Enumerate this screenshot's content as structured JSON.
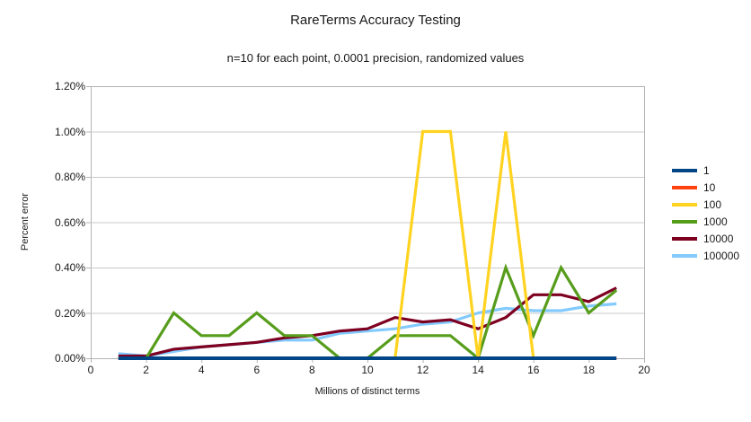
{
  "chart_data": {
    "type": "line",
    "title": "RareTerms Accuracy Testing",
    "subtitle": "n=10 for each point, 0.0001 precision, randomized values",
    "xlabel": "Millions of distinct terms",
    "ylabel": "Percent error",
    "xlim": [
      0,
      20
    ],
    "ylim_percent": [
      0,
      1.2
    ],
    "grid": "horizontal",
    "legend_position": "right",
    "x_ticks": [
      0,
      2,
      4,
      6,
      8,
      10,
      12,
      14,
      16,
      18,
      20
    ],
    "y_ticks": [
      "0.00%",
      "0.20%",
      "0.40%",
      "0.60%",
      "0.80%",
      "1.00%",
      "1.20%"
    ],
    "y_tick_values": [
      0,
      0.2,
      0.4,
      0.6,
      0.8,
      1.0,
      1.2
    ],
    "x": [
      1,
      2,
      3,
      4,
      5,
      6,
      7,
      8,
      9,
      10,
      11,
      12,
      13,
      14,
      15,
      16,
      17,
      18,
      19
    ],
    "series": [
      {
        "name": "1",
        "color": "#004586",
        "values": [
          0,
          0,
          0,
          0,
          0,
          0,
          0,
          0,
          0,
          0,
          0,
          0,
          0,
          0,
          0,
          0,
          0,
          0,
          0
        ]
      },
      {
        "name": "10",
        "color": "#FF420E",
        "values": [
          0,
          0,
          0,
          0,
          0,
          0,
          0,
          0,
          0,
          0,
          0,
          0,
          0,
          0,
          0,
          0,
          0,
          0,
          0
        ]
      },
      {
        "name": "100",
        "color": "#FFD320",
        "values": [
          0,
          0,
          0,
          0,
          0,
          0,
          0,
          0,
          0,
          0,
          0,
          1.0,
          1.0,
          0,
          1.0,
          0,
          0,
          0,
          0
        ]
      },
      {
        "name": "1000",
        "color": "#579D1C",
        "values": [
          0,
          0,
          0.2,
          0.1,
          0.1,
          0.2,
          0.1,
          0.1,
          0,
          0,
          0.1,
          0.1,
          0.1,
          0,
          0.4,
          0.1,
          0.4,
          0.2,
          0.3
        ]
      },
      {
        "name": "10000",
        "color": "#7E0021",
        "values": [
          0.01,
          0.01,
          0.04,
          0.05,
          0.06,
          0.07,
          0.09,
          0.1,
          0.12,
          0.13,
          0.18,
          0.16,
          0.17,
          0.13,
          0.18,
          0.28,
          0.28,
          0.25,
          0.31
        ]
      },
      {
        "name": "100000",
        "color": "#83CAFF",
        "values": [
          0.02,
          0.01,
          0.03,
          0.05,
          0.06,
          0.07,
          0.08,
          0.08,
          0.11,
          0.12,
          0.13,
          0.15,
          0.16,
          0.2,
          0.22,
          0.21,
          0.21,
          0.23,
          0.24
        ]
      }
    ],
    "draw_order": [
      "100000",
      "10000",
      "1000",
      "100",
      "10",
      "1"
    ]
  }
}
